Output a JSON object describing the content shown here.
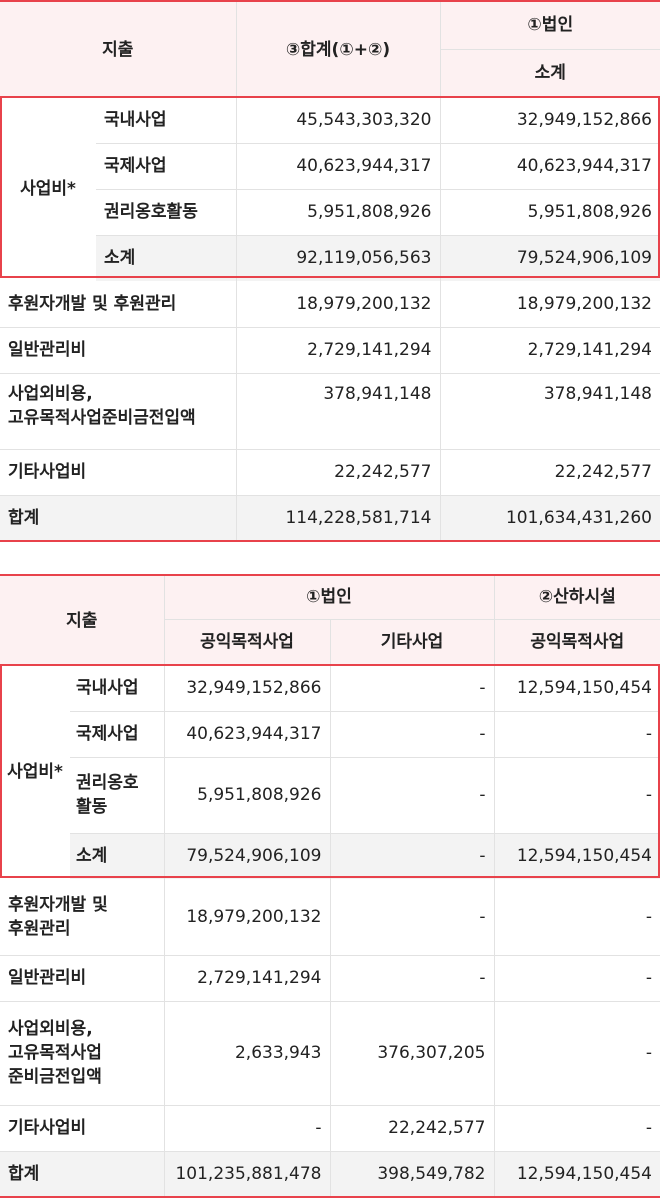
{
  "table1": {
    "header": {
      "col_expense": "지출",
      "col_total": "③합계(①+②)",
      "col_corp": "①법인",
      "col_corp_sub": "소계"
    },
    "group_label": "사업비*",
    "group_rows": [
      {
        "label": "국내사업",
        "total": "45,543,303,320",
        "corp": "32,949,152,866"
      },
      {
        "label": "국제사업",
        "total": "40,623,944,317",
        "corp": "40,623,944,317"
      },
      {
        "label": "권리옹호활동",
        "total": "5,951,808,926",
        "corp": "5,951,808,926"
      },
      {
        "label": "소계",
        "total": "92,119,056,563",
        "corp": "79,524,906,109"
      }
    ],
    "rows": [
      {
        "label": "후원자개발 및 후원관리",
        "total": "18,979,200,132",
        "corp": "18,979,200,132"
      },
      {
        "label": "일반관리비",
        "total": "2,729,141,294",
        "corp": "2,729,141,294"
      },
      {
        "label_line1": "사업외비용,",
        "label_line2": "고유목적사업준비금전입액",
        "total": "378,941,148",
        "corp": "378,941,148"
      },
      {
        "label": "기타사업비",
        "total": "22,242,577",
        "corp": "22,242,577"
      },
      {
        "label": "합계",
        "total": "114,228,581,714",
        "corp": "101,634,431,260"
      }
    ]
  },
  "table2": {
    "header": {
      "col_expense": "지출",
      "col_corp": "①법인",
      "col_facility": "②산하시설",
      "sub_public": "공익목적사업",
      "sub_other": "기타사업",
      "sub_facility_public": "공익목적사업"
    },
    "group_label": "사업비*",
    "group_rows": [
      {
        "label": "국내사업",
        "public": "32,949,152,866",
        "other": "-",
        "facility": "12,594,150,454"
      },
      {
        "label": "국제사업",
        "public": "40,623,944,317",
        "other": "-",
        "facility": "-"
      },
      {
        "label_line1": "권리옹호",
        "label_line2": "활동",
        "public": "5,951,808,926",
        "other": "-",
        "facility": "-"
      },
      {
        "label": "소계",
        "public": "79,524,906,109",
        "other": "-",
        "facility": "12,594,150,454"
      }
    ],
    "rows": [
      {
        "label_line1": "후원자개발 및",
        "label_line2": "후원관리",
        "public": "18,979,200,132",
        "other": "-",
        "facility": "-"
      },
      {
        "label": "일반관리비",
        "public": "2,729,141,294",
        "other": "-",
        "facility": "-"
      },
      {
        "label_line1": "사업외비용,",
        "label_line2": "고유목적사업",
        "label_line3": "준비금전입액",
        "public": "2,633,943",
        "other": "376,307,205",
        "facility": "-"
      },
      {
        "label": "기타사업비",
        "public": "-",
        "other": "22,242,577",
        "facility": "-"
      },
      {
        "label": "합계",
        "public": "101,235,881,478",
        "other": "398,549,782",
        "facility": "12,594,150,454"
      }
    ]
  }
}
